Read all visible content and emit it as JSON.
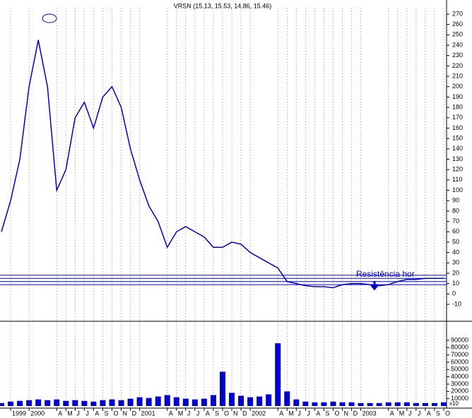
{
  "chart_data": [
    {
      "type": "line",
      "title": "VRSN (15.13, 15.53, 14.86, 15.46)",
      "categories": [
        null,
        "1999",
        null,
        "2000",
        null,
        null,
        "A",
        "M",
        "J",
        "J",
        "A",
        "S",
        "O",
        "N",
        "D",
        "2001",
        null,
        null,
        "A",
        "M",
        "J",
        "J",
        "A",
        "S",
        "O",
        "N",
        "D",
        "2002",
        null,
        null,
        "A",
        "M",
        "J",
        "J",
        "A",
        "S",
        "O",
        "N",
        "D",
        "2003",
        null,
        null,
        "A",
        "M",
        "J",
        "J",
        "A",
        "S",
        "O"
      ],
      "series": [
        {
          "name": "VRSN",
          "color": "#0000cc",
          "values": [
            60,
            90,
            130,
            200,
            245,
            200,
            100,
            120,
            170,
            185,
            160,
            190,
            200,
            180,
            140,
            110,
            85,
            70,
            45,
            60,
            65,
            60,
            55,
            45,
            45,
            50,
            48,
            40,
            35,
            30,
            25,
            12,
            10,
            8,
            7,
            7,
            6,
            9,
            10,
            10,
            9,
            8,
            9,
            12,
            14,
            14,
            15,
            15,
            15
          ]
        }
      ],
      "ylim": [
        -10,
        270
      ],
      "yticks": [
        -10,
        0,
        10,
        20,
        30,
        40,
        50,
        60,
        70,
        80,
        90,
        100,
        110,
        120,
        130,
        140,
        150,
        160,
        170,
        180,
        190,
        200,
        210,
        220,
        230,
        240,
        250,
        260,
        270
      ],
      "hlines": [
        18,
        15,
        12,
        9
      ],
      "annotation": "Resistência hor",
      "grid": true
    },
    {
      "type": "bar",
      "values": [
        4000,
        6000,
        7000,
        8000,
        9000,
        8000,
        9000,
        7000,
        8000,
        7000,
        6000,
        8000,
        9000,
        8000,
        10000,
        12000,
        11000,
        13000,
        15000,
        12000,
        10000,
        9000,
        10000,
        15000,
        47000,
        18000,
        14000,
        12000,
        13000,
        16000,
        86000,
        20000,
        9000,
        6000,
        5000,
        5000,
        6000,
        5000,
        5000,
        4000,
        4000,
        4000,
        5000,
        5000,
        5000,
        4000,
        4000,
        4000,
        5000
      ],
      "color": "#0000cc",
      "ylim": [
        0,
        90000
      ],
      "yticks": [
        10000,
        20000,
        30000,
        40000,
        50000,
        60000,
        70000,
        80000,
        90000
      ],
      "unit_label": "x10"
    }
  ]
}
